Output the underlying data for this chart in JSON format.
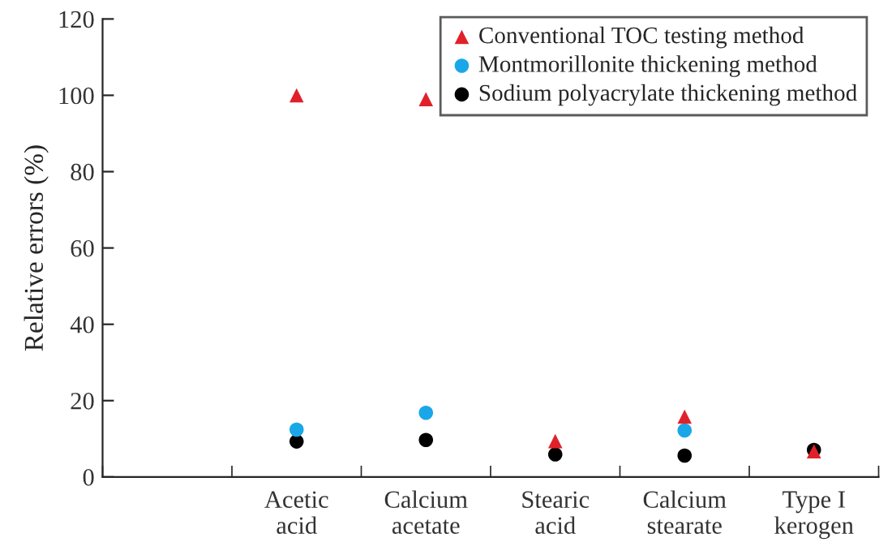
{
  "chart_data": {
    "type": "scatter",
    "ylabel": "Relative errors (%)",
    "categories": [
      null,
      "Acetic\nacid",
      "Calcium\nacetate",
      "Stearic\nacid",
      "Calcium\nstearate",
      "Type I\nkerogen"
    ],
    "ylim": [
      0,
      120
    ],
    "yticks": [
      0,
      20,
      40,
      60,
      80,
      100,
      120
    ],
    "grid": false,
    "legend": "top right",
    "series": [
      {
        "name": "Conventional TOC testing method",
        "color": "#e0212b",
        "marker": "triangle",
        "values": [
          null,
          100,
          99,
          9.4,
          15.8,
          6.7
        ]
      },
      {
        "name": "Montmorillonite thickening method",
        "color": "#1aa7e8",
        "marker": "circle",
        "values": [
          null,
          12.4,
          16.8,
          null,
          12.2,
          null
        ]
      },
      {
        "name": "Sodium polyacrylate thickening method",
        "color": "#000000",
        "marker": "circle",
        "values": [
          null,
          9.3,
          9.7,
          5.9,
          5.6,
          7.1
        ]
      }
    ]
  }
}
